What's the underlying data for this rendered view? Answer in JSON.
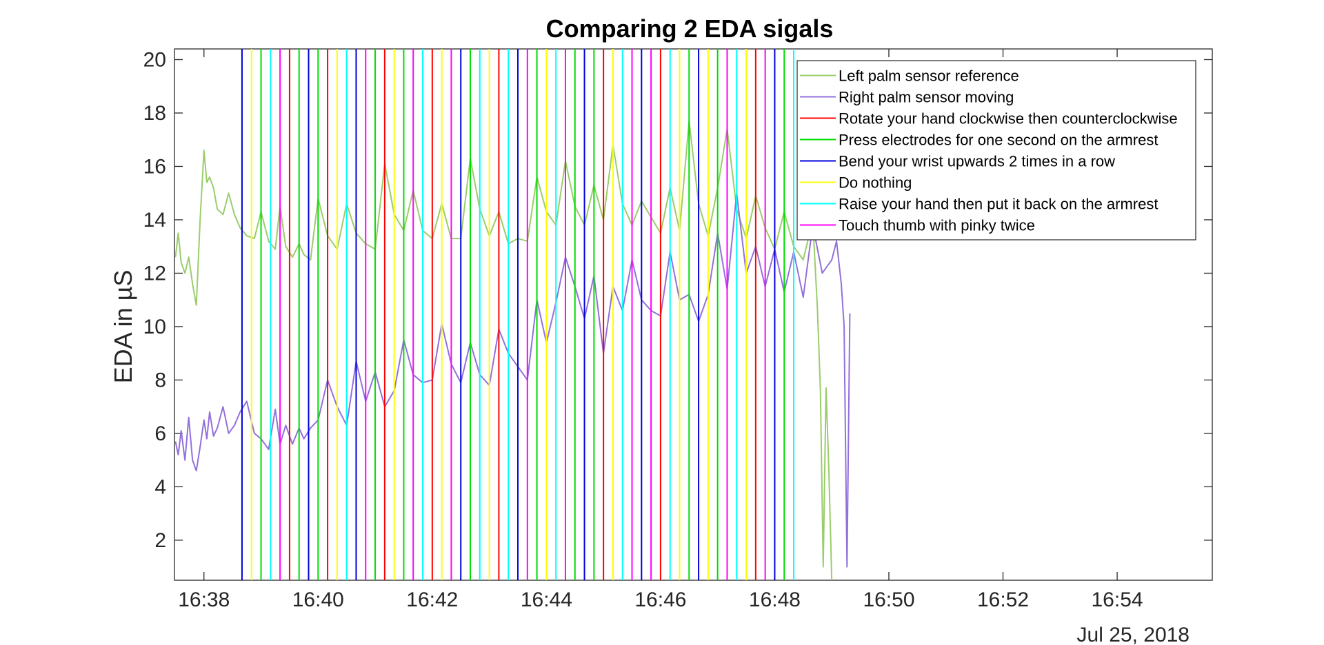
{
  "chart_data": {
    "type": "line",
    "title": "Comparing 2 EDA sigals",
    "xlabel": "",
    "ylabel": "EDA in µS",
    "x_unit": "time (HH:MM) on Jul 25, 2018",
    "date_label": "Jul 25, 2018",
    "xlim": [
      "16:37:29",
      "16:55:40"
    ],
    "ylim": [
      0.5,
      20.4
    ],
    "x_ticks": [
      "16:38",
      "16:40",
      "16:42",
      "16:44",
      "16:46",
      "16:48",
      "16:50",
      "16:52",
      "16:54"
    ],
    "y_ticks": [
      2,
      4,
      6,
      8,
      10,
      12,
      14,
      16,
      18,
      20
    ],
    "grid": false,
    "legend_position": "top-right",
    "series": [
      {
        "name": "Left palm sensor reference",
        "color": "#9ACD6A",
        "x": [
          "16:37:30",
          "16:37:33",
          "16:37:36",
          "16:37:40",
          "16:37:44",
          "16:37:48",
          "16:37:52",
          "16:37:56",
          "16:38:00",
          "16:38:03",
          "16:38:06",
          "16:38:10",
          "16:38:14",
          "16:38:20",
          "16:38:26",
          "16:38:32",
          "16:38:38",
          "16:38:45",
          "16:38:53",
          "16:39:00",
          "16:39:08",
          "16:39:15",
          "16:39:20",
          "16:39:26",
          "16:39:33",
          "16:39:40",
          "16:39:45",
          "16:39:52",
          "16:40:00",
          "16:40:10",
          "16:40:20",
          "16:40:30",
          "16:40:40",
          "16:40:50",
          "16:41:00",
          "16:41:10",
          "16:41:20",
          "16:41:30",
          "16:41:40",
          "16:41:50",
          "16:42:00",
          "16:42:10",
          "16:42:20",
          "16:42:30",
          "16:42:40",
          "16:42:50",
          "16:43:00",
          "16:43:10",
          "16:43:20",
          "16:43:30",
          "16:43:40",
          "16:43:50",
          "16:44:00",
          "16:44:10",
          "16:44:20",
          "16:44:30",
          "16:44:40",
          "16:44:50",
          "16:45:00",
          "16:45:10",
          "16:45:20",
          "16:45:30",
          "16:45:40",
          "16:45:50",
          "16:46:00",
          "16:46:10",
          "16:46:20",
          "16:46:30",
          "16:46:40",
          "16:46:50",
          "16:47:00",
          "16:47:10",
          "16:47:20",
          "16:47:30",
          "16:47:40",
          "16:47:50",
          "16:48:00",
          "16:48:10",
          "16:48:20",
          "16:48:30",
          "16:48:40",
          "16:48:45",
          "16:48:48",
          "16:48:51",
          "16:48:54",
          "16:48:57",
          "16:49:00"
        ],
        "values": [
          12.6,
          13.5,
          12.4,
          12.0,
          12.6,
          11.6,
          10.8,
          14.0,
          16.6,
          15.4,
          15.6,
          15.2,
          14.4,
          14.2,
          15.0,
          14.2,
          13.7,
          13.4,
          13.3,
          14.3,
          13.2,
          12.9,
          14.5,
          13.0,
          12.6,
          13.1,
          12.7,
          12.5,
          14.8,
          13.4,
          12.9,
          14.6,
          13.5,
          13.1,
          12.9,
          16.1,
          14.2,
          13.6,
          15.1,
          13.6,
          13.3,
          14.6,
          13.3,
          13.3,
          16.3,
          14.4,
          13.4,
          14.3,
          13.1,
          13.3,
          13.2,
          15.6,
          14.3,
          13.8,
          16.2,
          14.5,
          13.8,
          15.3,
          14.0,
          16.8,
          14.6,
          13.8,
          14.7,
          14.1,
          13.5,
          15.2,
          13.6,
          17.7,
          14.6,
          13.4,
          15.2,
          17.4,
          14.4,
          13.3,
          14.9,
          13.7,
          12.9,
          14.3,
          13.0,
          12.5,
          14.0,
          10.6,
          7.6,
          1.0,
          7.7,
          4.5,
          0.5
        ]
      },
      {
        "name": "Right palm sensor moving",
        "color": "#9370DB",
        "x": [
          "16:37:30",
          "16:37:33",
          "16:37:36",
          "16:37:40",
          "16:37:44",
          "16:37:48",
          "16:37:52",
          "16:37:56",
          "16:38:00",
          "16:38:03",
          "16:38:06",
          "16:38:10",
          "16:38:14",
          "16:38:20",
          "16:38:26",
          "16:38:32",
          "16:38:38",
          "16:38:45",
          "16:38:53",
          "16:39:00",
          "16:39:08",
          "16:39:15",
          "16:39:20",
          "16:39:26",
          "16:39:33",
          "16:39:40",
          "16:39:45",
          "16:39:52",
          "16:40:00",
          "16:40:10",
          "16:40:20",
          "16:40:30",
          "16:40:40",
          "16:40:50",
          "16:41:00",
          "16:41:10",
          "16:41:20",
          "16:41:30",
          "16:41:40",
          "16:41:50",
          "16:42:00",
          "16:42:10",
          "16:42:20",
          "16:42:30",
          "16:42:40",
          "16:42:50",
          "16:43:00",
          "16:43:10",
          "16:43:20",
          "16:43:30",
          "16:43:40",
          "16:43:50",
          "16:44:00",
          "16:44:10",
          "16:44:20",
          "16:44:30",
          "16:44:40",
          "16:44:50",
          "16:45:00",
          "16:45:10",
          "16:45:20",
          "16:45:30",
          "16:45:40",
          "16:45:50",
          "16:46:00",
          "16:46:10",
          "16:46:20",
          "16:46:30",
          "16:46:40",
          "16:46:50",
          "16:47:00",
          "16:47:10",
          "16:47:20",
          "16:47:30",
          "16:47:40",
          "16:47:50",
          "16:48:00",
          "16:48:10",
          "16:48:20",
          "16:48:30",
          "16:48:40",
          "16:48:50",
          "16:49:00",
          "16:49:05",
          "16:49:10",
          "16:49:13",
          "16:49:16",
          "16:49:19"
        ],
        "values": [
          5.7,
          5.2,
          6.1,
          5.0,
          6.6,
          5.0,
          4.6,
          5.5,
          6.5,
          5.8,
          6.8,
          5.9,
          6.2,
          7.0,
          6.0,
          6.3,
          6.8,
          7.2,
          6.0,
          5.8,
          5.4,
          6.9,
          5.6,
          6.3,
          5.6,
          6.2,
          5.8,
          6.2,
          6.5,
          8.0,
          7.0,
          6.3,
          8.7,
          7.2,
          8.3,
          7.0,
          7.6,
          9.5,
          8.2,
          7.9,
          8.0,
          10.1,
          8.6,
          7.9,
          9.4,
          8.2,
          7.8,
          9.9,
          9.0,
          8.5,
          8.0,
          11.0,
          9.4,
          10.9,
          12.6,
          11.5,
          10.3,
          11.9,
          9.0,
          11.5,
          10.6,
          12.5,
          11.0,
          10.6,
          10.4,
          12.8,
          11.0,
          11.2,
          10.2,
          11.2,
          13.5,
          11.4,
          15.0,
          12.0,
          13.0,
          11.5,
          12.9,
          11.3,
          12.8,
          11.1,
          13.8,
          12.0,
          12.5,
          13.2,
          11.6,
          10.0,
          1.0,
          10.5
        ]
      }
    ],
    "events": [
      {
        "time": "16:38:40",
        "type": "blue"
      },
      {
        "time": "16:38:50",
        "type": "yellow"
      },
      {
        "time": "16:39:00",
        "type": "green"
      },
      {
        "time": "16:39:10",
        "type": "cyan"
      },
      {
        "time": "16:39:20",
        "type": "magenta"
      },
      {
        "time": "16:39:30",
        "type": "red"
      },
      {
        "time": "16:39:40",
        "type": "green"
      },
      {
        "time": "16:39:50",
        "type": "blue"
      },
      {
        "time": "16:40:00",
        "type": "green"
      },
      {
        "time": "16:40:10",
        "type": "red"
      },
      {
        "time": "16:40:20",
        "type": "yellow"
      },
      {
        "time": "16:40:30",
        "type": "cyan"
      },
      {
        "time": "16:40:40",
        "type": "blue"
      },
      {
        "time": "16:40:50",
        "type": "magenta"
      },
      {
        "time": "16:41:00",
        "type": "green"
      },
      {
        "time": "16:41:10",
        "type": "red"
      },
      {
        "time": "16:41:20",
        "type": "yellow"
      },
      {
        "time": "16:41:30",
        "type": "green"
      },
      {
        "time": "16:41:40",
        "type": "magenta"
      },
      {
        "time": "16:41:50",
        "type": "cyan"
      },
      {
        "time": "16:42:00",
        "type": "red"
      },
      {
        "time": "16:42:10",
        "type": "yellow"
      },
      {
        "time": "16:42:20",
        "type": "magenta"
      },
      {
        "time": "16:42:30",
        "type": "blue"
      },
      {
        "time": "16:42:40",
        "type": "green"
      },
      {
        "time": "16:42:50",
        "type": "cyan"
      },
      {
        "time": "16:43:00",
        "type": "yellow"
      },
      {
        "time": "16:43:10",
        "type": "red"
      },
      {
        "time": "16:43:20",
        "type": "cyan"
      },
      {
        "time": "16:43:30",
        "type": "blue"
      },
      {
        "time": "16:43:40",
        "type": "magenta"
      },
      {
        "time": "16:43:50",
        "type": "green"
      },
      {
        "time": "16:44:00",
        "type": "yellow"
      },
      {
        "time": "16:44:10",
        "type": "cyan"
      },
      {
        "time": "16:44:20",
        "type": "magenta"
      },
      {
        "time": "16:44:30",
        "type": "green"
      },
      {
        "time": "16:44:40",
        "type": "blue"
      },
      {
        "time": "16:44:50",
        "type": "green"
      },
      {
        "time": "16:45:00",
        "type": "red"
      },
      {
        "time": "16:45:10",
        "type": "yellow"
      },
      {
        "time": "16:45:20",
        "type": "cyan"
      },
      {
        "time": "16:45:30",
        "type": "magenta"
      },
      {
        "time": "16:45:40",
        "type": "blue"
      },
      {
        "time": "16:45:50",
        "type": "magenta"
      },
      {
        "time": "16:46:00",
        "type": "red"
      },
      {
        "time": "16:46:10",
        "type": "cyan"
      },
      {
        "time": "16:46:20",
        "type": "yellow"
      },
      {
        "time": "16:46:30",
        "type": "green"
      },
      {
        "time": "16:46:40",
        "type": "blue"
      },
      {
        "time": "16:46:50",
        "type": "yellow"
      },
      {
        "time": "16:47:00",
        "type": "green"
      },
      {
        "time": "16:47:10",
        "type": "magenta"
      },
      {
        "time": "16:47:20",
        "type": "cyan"
      },
      {
        "time": "16:47:30",
        "type": "yellow"
      },
      {
        "time": "16:47:40",
        "type": "red"
      },
      {
        "time": "16:47:50",
        "type": "magenta"
      },
      {
        "time": "16:48:00",
        "type": "blue"
      },
      {
        "time": "16:48:10",
        "type": "green"
      },
      {
        "time": "16:48:20",
        "type": "cyan"
      }
    ],
    "legend": [
      {
        "label": "Left palm sensor reference",
        "color": "#9ACD6A"
      },
      {
        "label": "Right palm sensor moving",
        "color": "#9370DB"
      },
      {
        "label": "Rotate your hand clockwise then counterclockwise",
        "color": "#FF0000"
      },
      {
        "label": "Press electrodes for one second on the armrest",
        "color": "#00DD00"
      },
      {
        "label": "Bend your wrist upwards 2 times in a row",
        "color": "#0000DD"
      },
      {
        "label": "Do nothing",
        "color": "#FFFF00"
      },
      {
        "label": "Raise your hand then put it back on the armrest",
        "color": "#00FFFF"
      },
      {
        "label": "Touch thumb with pinky twice",
        "color": "#FF00FF"
      }
    ],
    "event_colors": {
      "red": "#FF0000",
      "green": "#00DD00",
      "blue": "#0000DD",
      "yellow": "#FFFF00",
      "cyan": "#00FFFF",
      "magenta": "#FF00FF"
    }
  }
}
